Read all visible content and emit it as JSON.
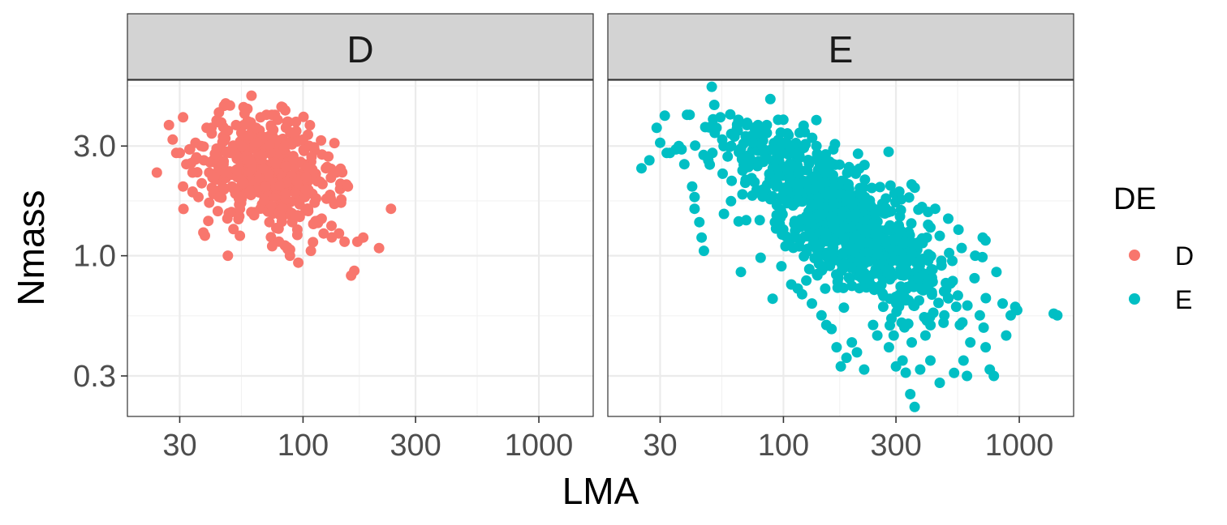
{
  "chart_data": {
    "type": "scatter",
    "xlabel": "LMA",
    "ylabel": "Nmass",
    "x_scale": "log10",
    "y_scale": "log10",
    "xlim": [
      18,
      1700
    ],
    "ylim": [
      0.2,
      5.8
    ],
    "x_ticks": [
      30,
      100,
      300,
      1000
    ],
    "x_tick_labels": [
      "30",
      "100",
      "300",
      "1000"
    ],
    "y_ticks": [
      0.3,
      1.0,
      3.0
    ],
    "y_tick_labels": [
      "0.3",
      "1.0",
      "3.0"
    ],
    "legend": {
      "title": "DE",
      "position": "right",
      "entries": [
        {
          "label": "D",
          "color": "#F8766D"
        },
        {
          "label": "E",
          "color": "#00BFC4"
        }
      ]
    },
    "facets": [
      {
        "label": "D",
        "color": "#F8766D",
        "cloud": {
          "center_lma": 72,
          "center_nmass": 2.3,
          "sd_log_lma": 0.14,
          "sd_log_nmass": 0.12,
          "rho": -0.25,
          "count": 420
        },
        "points": [
          [
            24,
            2.3
          ],
          [
            27,
            3.7
          ],
          [
            28,
            3.2
          ],
          [
            29,
            2.8
          ],
          [
            30,
            2.8
          ],
          [
            31,
            4.0
          ],
          [
            31,
            2.0
          ],
          [
            32,
            2.5
          ],
          [
            33,
            2.9
          ],
          [
            34,
            2.3
          ],
          [
            34,
            1.9
          ],
          [
            35,
            3.1
          ],
          [
            36,
            1.8
          ],
          [
            37,
            3.0
          ],
          [
            38,
            2.6
          ],
          [
            39,
            3.6
          ],
          [
            40,
            2.3
          ],
          [
            40,
            1.7
          ],
          [
            41,
            3.4
          ],
          [
            42,
            2.2
          ],
          [
            44,
            4.2
          ],
          [
            44,
            1.8
          ],
          [
            45,
            3.8
          ],
          [
            46,
            2.5
          ],
          [
            47,
            4.6
          ],
          [
            48,
            3.5
          ],
          [
            48,
            1.0
          ],
          [
            49,
            4.5
          ],
          [
            50,
            2.0
          ],
          [
            52,
            3.7
          ],
          [
            54,
            1.6
          ],
          [
            55,
            3.0
          ],
          [
            58,
            2.6
          ],
          [
            60,
            3.8
          ],
          [
            62,
            1.5
          ],
          [
            64,
            3.1
          ],
          [
            66,
            4.0
          ],
          [
            70,
            4.1
          ],
          [
            72,
            1.4
          ],
          [
            74,
            1.1
          ],
          [
            76,
            4.1
          ],
          [
            78,
            3.9
          ],
          [
            80,
            1.5
          ],
          [
            84,
            3.0
          ],
          [
            88,
            1.0
          ],
          [
            90,
            1.4
          ],
          [
            95,
            1.5
          ],
          [
            100,
            3.2
          ],
          [
            105,
            1.6
          ],
          [
            108,
            1.05
          ],
          [
            112,
            1.7
          ],
          [
            118,
            2.1
          ],
          [
            120,
            1.45
          ],
          [
            125,
            2.4
          ],
          [
            128,
            2.7
          ],
          [
            132,
            1.35
          ],
          [
            138,
            2.3
          ],
          [
            142,
            1.25
          ],
          [
            145,
            1.7
          ],
          [
            150,
            1.15
          ],
          [
            155,
            2.0
          ],
          [
            160,
            0.82
          ],
          [
            165,
            0.86
          ],
          [
            170,
            1.15
          ],
          [
            180,
            1.2
          ],
          [
            210,
            1.08
          ],
          [
            236,
            1.6
          ]
        ]
      },
      {
        "label": "E",
        "color": "#00BFC4",
        "cloud": {
          "center_lma": 175,
          "center_nmass": 1.45,
          "sd_log_lma": 0.22,
          "sd_log_nmass": 0.19,
          "rho": -0.72,
          "count": 900
        },
        "points": [
          [
            25,
            2.4
          ],
          [
            27,
            2.6
          ],
          [
            29,
            3.6
          ],
          [
            30,
            3.1
          ],
          [
            32,
            2.8
          ],
          [
            33,
            2.8
          ],
          [
            35,
            2.9
          ],
          [
            36,
            3.0
          ],
          [
            37,
            2.9
          ],
          [
            38,
            2.5
          ],
          [
            39,
            4.1
          ],
          [
            40,
            4.1
          ],
          [
            41,
            2.0
          ],
          [
            42,
            1.8
          ],
          [
            42,
            1.6
          ],
          [
            44,
            1.4
          ],
          [
            45,
            1.2
          ],
          [
            46,
            1.05
          ],
          [
            48,
            2.6
          ],
          [
            50,
            2.8
          ],
          [
            52,
            3.6
          ],
          [
            54,
            4.0
          ],
          [
            55,
            3.2
          ],
          [
            58,
            2.7
          ],
          [
            60,
            3.0
          ],
          [
            62,
            3.3
          ],
          [
            64,
            3.5
          ],
          [
            66,
            0.85
          ],
          [
            70,
            3.7
          ],
          [
            74,
            3.1
          ],
          [
            78,
            3.7
          ],
          [
            80,
            0.98
          ],
          [
            82,
            3.4
          ],
          [
            85,
            3.7
          ],
          [
            88,
            4.8
          ],
          [
            90,
            0.65
          ],
          [
            92,
            1.4
          ],
          [
            95,
            3.9
          ],
          [
            98,
            0.9
          ],
          [
            102,
            1.1
          ],
          [
            108,
            0.75
          ],
          [
            115,
            0.72
          ],
          [
            120,
            0.68
          ],
          [
            125,
            0.78
          ],
          [
            132,
            0.62
          ],
          [
            138,
            3.0
          ],
          [
            145,
            0.55
          ],
          [
            152,
            0.5
          ],
          [
            160,
            0.48
          ],
          [
            168,
            0.4
          ],
          [
            175,
            0.33
          ],
          [
            185,
            0.36
          ],
          [
            195,
            0.42
          ],
          [
            205,
            0.38
          ],
          [
            220,
            0.32
          ],
          [
            240,
            0.5
          ],
          [
            250,
            0.45
          ],
          [
            265,
            0.6
          ],
          [
            280,
            0.4
          ],
          [
            300,
            0.33
          ],
          [
            310,
            1.9
          ],
          [
            320,
            0.35
          ],
          [
            330,
            0.31
          ],
          [
            345,
            0.25
          ],
          [
            350,
            0.42
          ],
          [
            360,
            0.22
          ],
          [
            380,
            0.32
          ],
          [
            400,
            0.45
          ],
          [
            420,
            0.35
          ],
          [
            440,
            1.6
          ],
          [
            460,
            0.28
          ],
          [
            480,
            0.7
          ],
          [
            500,
            1.45
          ],
          [
            520,
            0.95
          ],
          [
            540,
            0.6
          ],
          [
            560,
            0.5
          ],
          [
            580,
            0.35
          ],
          [
            600,
            0.3
          ],
          [
            620,
            0.42
          ],
          [
            650,
            1.0
          ],
          [
            680,
            0.55
          ],
          [
            700,
            1.2
          ],
          [
            720,
            0.4
          ],
          [
            750,
            0.32
          ],
          [
            780,
            0.3
          ],
          [
            800,
            0.85
          ],
          [
            850,
            0.62
          ],
          [
            880,
            0.45
          ],
          [
            920,
            0.55
          ],
          [
            980,
            0.58
          ],
          [
            1400,
            0.56
          ],
          [
            1450,
            0.55
          ]
        ]
      }
    ]
  }
}
